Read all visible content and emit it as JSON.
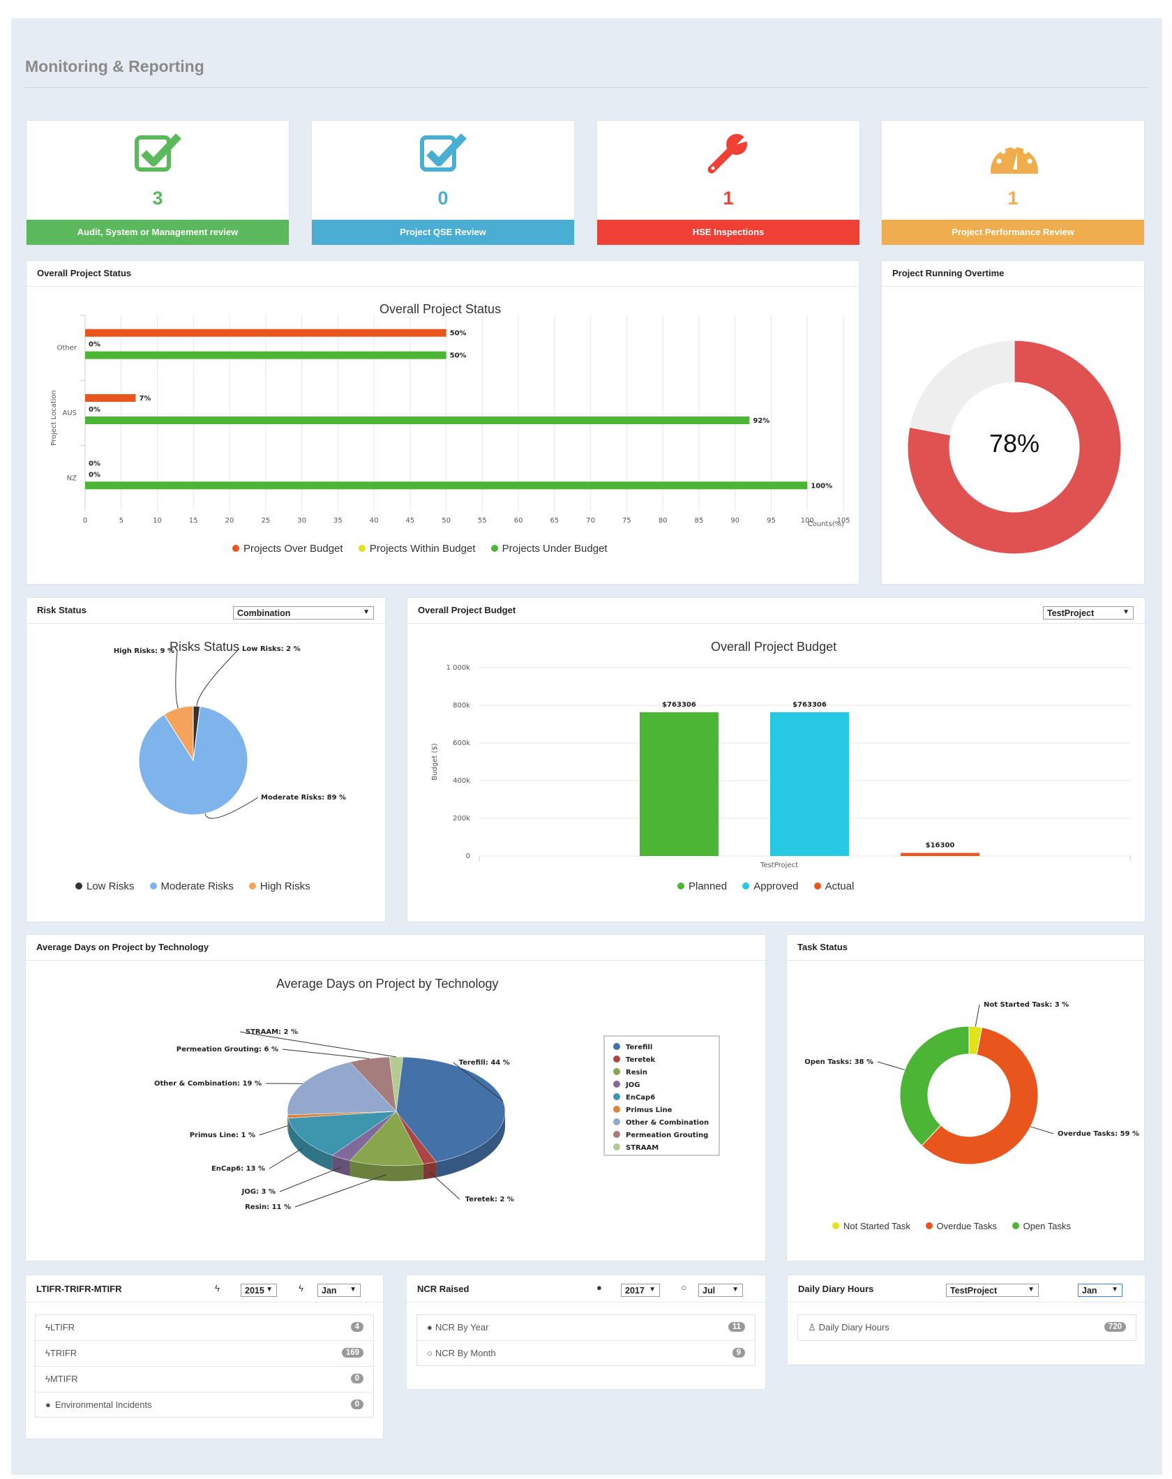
{
  "page": {
    "title": "Monitoring & Reporting"
  },
  "kpis": [
    {
      "value": "3",
      "label": "Audit, System or Management review",
      "color": "#5cb85c",
      "icon": "check-square-icon"
    },
    {
      "value": "0",
      "label": "Project QSE Review",
      "color": "#4aaed2",
      "icon": "check-square-icon"
    },
    {
      "value": "1",
      "label": "HSE Inspections",
      "color": "#ee4035",
      "icon": "wrench-icon"
    },
    {
      "value": "1",
      "label": "Project Performance Review",
      "color": "#f0ad4e",
      "icon": "dashboard-icon"
    }
  ],
  "overall_status": {
    "panel_title": "Overall Project Status"
  },
  "overtime": {
    "panel_title": "Project Running Overtime",
    "value_label": "78%"
  },
  "risk": {
    "panel_title": "Risk Status",
    "select": "Combination"
  },
  "budget": {
    "panel_title": "Overall Project Budget",
    "select": "TestProject"
  },
  "avgdays": {
    "panel_title": "Average Days on Project by Technology"
  },
  "task": {
    "panel_title": "Task Status"
  },
  "ltifr": {
    "panel_title": "LTIFR-TRIFR-MTIFR",
    "year": "2015",
    "month": "Jan",
    "items": [
      {
        "label": "LTIFR",
        "count": "4"
      },
      {
        "label": "TRIFR",
        "count": "169"
      },
      {
        "label": "MTIFR",
        "count": "0"
      },
      {
        "label": "Environmental Incidents",
        "count": "0"
      }
    ]
  },
  "ncr": {
    "panel_title": "NCR Raised",
    "year": "2017",
    "month": "Jul",
    "items": [
      {
        "label": "NCR By Year",
        "count": "11"
      },
      {
        "label": "NCR By Month",
        "count": "9"
      }
    ]
  },
  "diary": {
    "panel_title": "Daily Diary Hours",
    "project": "TestProject",
    "month": "Jan",
    "items": [
      {
        "label": "Daily Diary Hours",
        "count": "720"
      }
    ]
  },
  "chart_data": [
    {
      "type": "bar",
      "orientation": "horizontal",
      "title": "Overall Project Status",
      "ylabel": "Project Location",
      "xlabel": "Counts(%)",
      "categories": [
        "Other",
        "AUS",
        "NZ"
      ],
      "xticks": [
        "0",
        "5",
        "10",
        "15",
        "20",
        "25",
        "30",
        "35",
        "40",
        "45",
        "50",
        "55",
        "60",
        "65",
        "70",
        "75",
        "80",
        "85",
        "90",
        "95",
        "100",
        "105"
      ],
      "xlim": [
        0,
        105
      ],
      "series": [
        {
          "name": "Projects Over Budget",
          "color": "#e8561e",
          "values": [
            50,
            7,
            0
          ],
          "labels": [
            "50%",
            "7%",
            "0%"
          ]
        },
        {
          "name": "Projects Within Budget",
          "color": "#e2e21a",
          "values": [
            0,
            0,
            0
          ],
          "labels": [
            "0%",
            "0%",
            "0%"
          ]
        },
        {
          "name": "Projects Under Budget",
          "color": "#4db535",
          "values": [
            50,
            92,
            100
          ],
          "labels": [
            "50%",
            "92%",
            "100%"
          ]
        }
      ]
    },
    {
      "type": "pie",
      "subtype": "donut",
      "title": "Project Running Overtime",
      "value": 78,
      "colors": [
        "#e05252",
        "#eeeeee"
      ]
    },
    {
      "type": "pie",
      "title": "Risks Status",
      "slices": [
        {
          "name": "Low Risks",
          "value": 2,
          "label": "Low Risks: 2 %",
          "color": "#333333"
        },
        {
          "name": "Moderate Risks",
          "value": 89,
          "label": "Moderate Risks: 89 %",
          "color": "#7eb3ec"
        },
        {
          "name": "High Risks",
          "value": 9,
          "label": "High Risks: 9 %",
          "color": "#f5a25a"
        }
      ]
    },
    {
      "type": "bar",
      "title": "Overall Project Budget",
      "ylabel": "Budget ($)",
      "categories": [
        "TestProject"
      ],
      "yticks": [
        "0",
        "200k",
        "400k",
        "600k",
        "800k",
        "1 000k"
      ],
      "ylim": [
        0,
        1000000
      ],
      "series": [
        {
          "name": "Planned",
          "values": [
            763306
          ],
          "label": "$763306",
          "color": "#4db535"
        },
        {
          "name": "Approved",
          "values": [
            763306
          ],
          "label": "$763306",
          "color": "#26c8e2"
        },
        {
          "name": "Actual",
          "values": [
            16300
          ],
          "label": "$16300",
          "color": "#e8561e"
        }
      ]
    },
    {
      "type": "pie",
      "subtype": "3d",
      "title": "Average Days on Project by Technology",
      "slices": [
        {
          "name": "Terefill",
          "value": 44,
          "label": "Terefill: 44 %",
          "color": "#4471a8"
        },
        {
          "name": "Teretek",
          "value": 2,
          "label": "Teretek: 2 %",
          "color": "#aa4643"
        },
        {
          "name": "Resin",
          "value": 11,
          "label": "Resin: 11 %",
          "color": "#89a54e"
        },
        {
          "name": "JOG",
          "value": 3,
          "label": "JOG: 3 %",
          "color": "#80699b"
        },
        {
          "name": "EnCap6",
          "value": 13,
          "label": "EnCap6: 13 %",
          "color": "#3d96ae"
        },
        {
          "name": "Primus Line",
          "value": 1,
          "label": "Primus Line: 1 %",
          "color": "#db843d"
        },
        {
          "name": "Other & Combination",
          "value": 19,
          "label": "Other & Combination: 19 %",
          "color": "#92a8cd"
        },
        {
          "name": "Permeation Grouting",
          "value": 6,
          "label": "Permeation Grouting: 6 %",
          "color": "#a47d7c"
        },
        {
          "name": "STRAAM",
          "value": 2,
          "label": "STRAAM: 2 %",
          "color": "#b5ca92"
        }
      ]
    },
    {
      "type": "pie",
      "subtype": "donut",
      "title": "Task Status",
      "slices": [
        {
          "name": "Not Started Task",
          "value": 3,
          "label": "Not Started Task: 3 %",
          "color": "#e2e21a"
        },
        {
          "name": "Overdue Tasks",
          "value": 59,
          "label": "Overdue Tasks: 59 %",
          "color": "#e8561e"
        },
        {
          "name": "Open Tasks",
          "value": 38,
          "label": "Open Tasks: 38 %",
          "color": "#4db535"
        }
      ]
    }
  ]
}
